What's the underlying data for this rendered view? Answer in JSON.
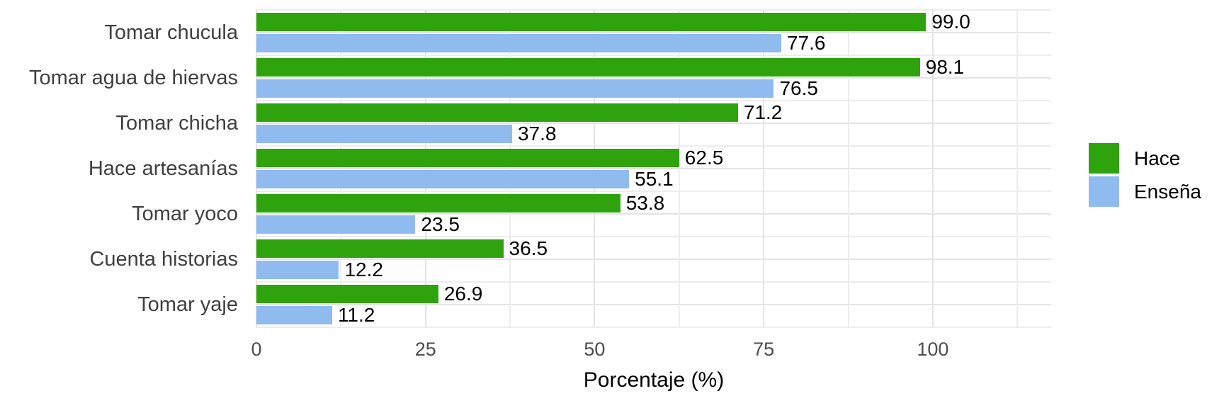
{
  "chart_data": {
    "type": "bar",
    "orientation": "horizontal",
    "title": "",
    "xlabel": "Porcentaje (%)",
    "ylabel": "",
    "categories": [
      "Tomar chucula",
      "Tomar agua de hiervas",
      "Tomar chicha",
      "Hace artesanías",
      "Tomar yoco",
      "Cuenta historias",
      "Tomar yaje"
    ],
    "series": [
      {
        "name": "Hace",
        "color": "#2FA30D",
        "values": [
          99.0,
          98.1,
          71.2,
          62.5,
          53.8,
          36.5,
          26.9
        ],
        "labels": [
          "99.0",
          "98.1",
          "71.2",
          "62.5",
          "53.8",
          "36.5",
          "26.9"
        ]
      },
      {
        "name": "Enseña",
        "color": "#8FBBEF",
        "values": [
          77.6,
          76.5,
          37.8,
          55.1,
          23.5,
          12.2,
          11.2
        ],
        "labels": [
          "77.6",
          "76.5",
          "37.8",
          "55.1",
          "23.5",
          "12.2",
          "11.2"
        ]
      }
    ],
    "x_ticks": [
      0,
      25,
      50,
      75,
      100
    ],
    "xlim": [
      0,
      117.5
    ],
    "grid": {
      "on": true,
      "minor_step": 12.5,
      "max_gridline": 112.5,
      "color_major": "#E4E4E4",
      "color_minor": "#EDEDED"
    },
    "legend": {
      "position": "right",
      "entries": [
        "Hace",
        "Enseña"
      ]
    },
    "colors": {
      "background": "#FFFFFF",
      "axis_text": "#4D4D4D",
      "category_text": "#404040",
      "value_label_text": "#000000",
      "axis_title_text": "#000000"
    }
  }
}
